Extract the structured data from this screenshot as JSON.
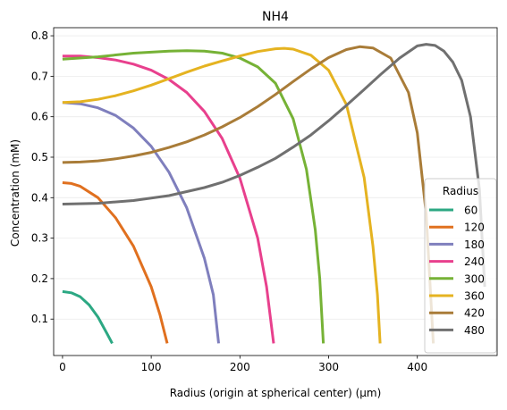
{
  "chart_data": {
    "type": "line",
    "title": "NH4",
    "xlabel": "Radius (origin at spherical center) (μm)",
    "ylabel": "Concentration (mM)",
    "xlim": [
      -10,
      490
    ],
    "ylim": [
      0.01,
      0.82
    ],
    "xticks": [
      0,
      100,
      200,
      300,
      400
    ],
    "yticks": [
      0.1,
      0.2,
      0.3,
      0.4,
      0.5,
      0.6,
      0.7,
      0.8
    ],
    "grid": "horizontal, light",
    "legend": {
      "title": "Radius",
      "placement": "lower-right"
    },
    "series": [
      {
        "name": "60",
        "color": "#2ca883",
        "x": [
          0,
          10,
          20,
          30,
          40,
          50,
          56
        ],
        "y": [
          0.168,
          0.165,
          0.155,
          0.135,
          0.105,
          0.065,
          0.04
        ]
      },
      {
        "name": "120",
        "color": "#e0701f",
        "x": [
          0,
          10,
          20,
          40,
          60,
          80,
          100,
          110,
          118
        ],
        "y": [
          0.437,
          0.435,
          0.428,
          0.4,
          0.35,
          0.28,
          0.18,
          0.11,
          0.04
        ]
      },
      {
        "name": "180",
        "color": "#7f7fbd",
        "x": [
          0,
          20,
          40,
          60,
          80,
          100,
          120,
          140,
          160,
          170,
          176
        ],
        "y": [
          0.635,
          0.632,
          0.622,
          0.603,
          0.572,
          0.527,
          0.463,
          0.375,
          0.25,
          0.16,
          0.04
        ]
      },
      {
        "name": "240",
        "color": "#e8408d",
        "x": [
          0,
          20,
          40,
          60,
          80,
          100,
          120,
          140,
          160,
          180,
          200,
          220,
          230,
          238
        ],
        "y": [
          0.75,
          0.75,
          0.746,
          0.74,
          0.73,
          0.715,
          0.692,
          0.66,
          0.613,
          0.546,
          0.448,
          0.3,
          0.18,
          0.04
        ]
      },
      {
        "name": "300",
        "color": "#76b236",
        "x": [
          0,
          40,
          80,
          120,
          140,
          160,
          180,
          200,
          220,
          240,
          260,
          275,
          285,
          290,
          294
        ],
        "y": [
          0.742,
          0.748,
          0.757,
          0.762,
          0.763,
          0.762,
          0.757,
          0.745,
          0.723,
          0.683,
          0.595,
          0.47,
          0.32,
          0.2,
          0.04
        ]
      },
      {
        "name": "360",
        "color": "#e5b321",
        "x": [
          0,
          20,
          40,
          60,
          80,
          100,
          120,
          140,
          160,
          180,
          200,
          220,
          240,
          250,
          260,
          280,
          300,
          320,
          340,
          350,
          355,
          358
        ],
        "y": [
          0.635,
          0.637,
          0.643,
          0.652,
          0.664,
          0.678,
          0.694,
          0.71,
          0.725,
          0.738,
          0.75,
          0.761,
          0.768,
          0.769,
          0.767,
          0.752,
          0.715,
          0.63,
          0.45,
          0.28,
          0.16,
          0.04
        ]
      },
      {
        "name": "420",
        "color": "#a97c38",
        "x": [
          0,
          20,
          40,
          60,
          80,
          100,
          120,
          140,
          160,
          180,
          200,
          220,
          240,
          260,
          280,
          300,
          320,
          335,
          350,
          370,
          390,
          400,
          410,
          418
        ],
        "y": [
          0.487,
          0.488,
          0.491,
          0.496,
          0.503,
          0.512,
          0.524,
          0.538,
          0.555,
          0.575,
          0.598,
          0.625,
          0.655,
          0.687,
          0.718,
          0.746,
          0.766,
          0.773,
          0.77,
          0.745,
          0.66,
          0.56,
          0.36,
          0.04
        ]
      },
      {
        "name": "480",
        "color": "#707070",
        "x": [
          0,
          40,
          80,
          120,
          160,
          180,
          200,
          220,
          240,
          260,
          280,
          300,
          320,
          340,
          360,
          380,
          400,
          410,
          420,
          430,
          440,
          450,
          460,
          470,
          476
        ],
        "y": [
          0.384,
          0.386,
          0.393,
          0.405,
          0.425,
          0.438,
          0.455,
          0.475,
          0.497,
          0.525,
          0.555,
          0.59,
          0.628,
          0.667,
          0.707,
          0.745,
          0.775,
          0.779,
          0.776,
          0.762,
          0.735,
          0.69,
          0.6,
          0.42,
          0.18
        ]
      }
    ]
  }
}
